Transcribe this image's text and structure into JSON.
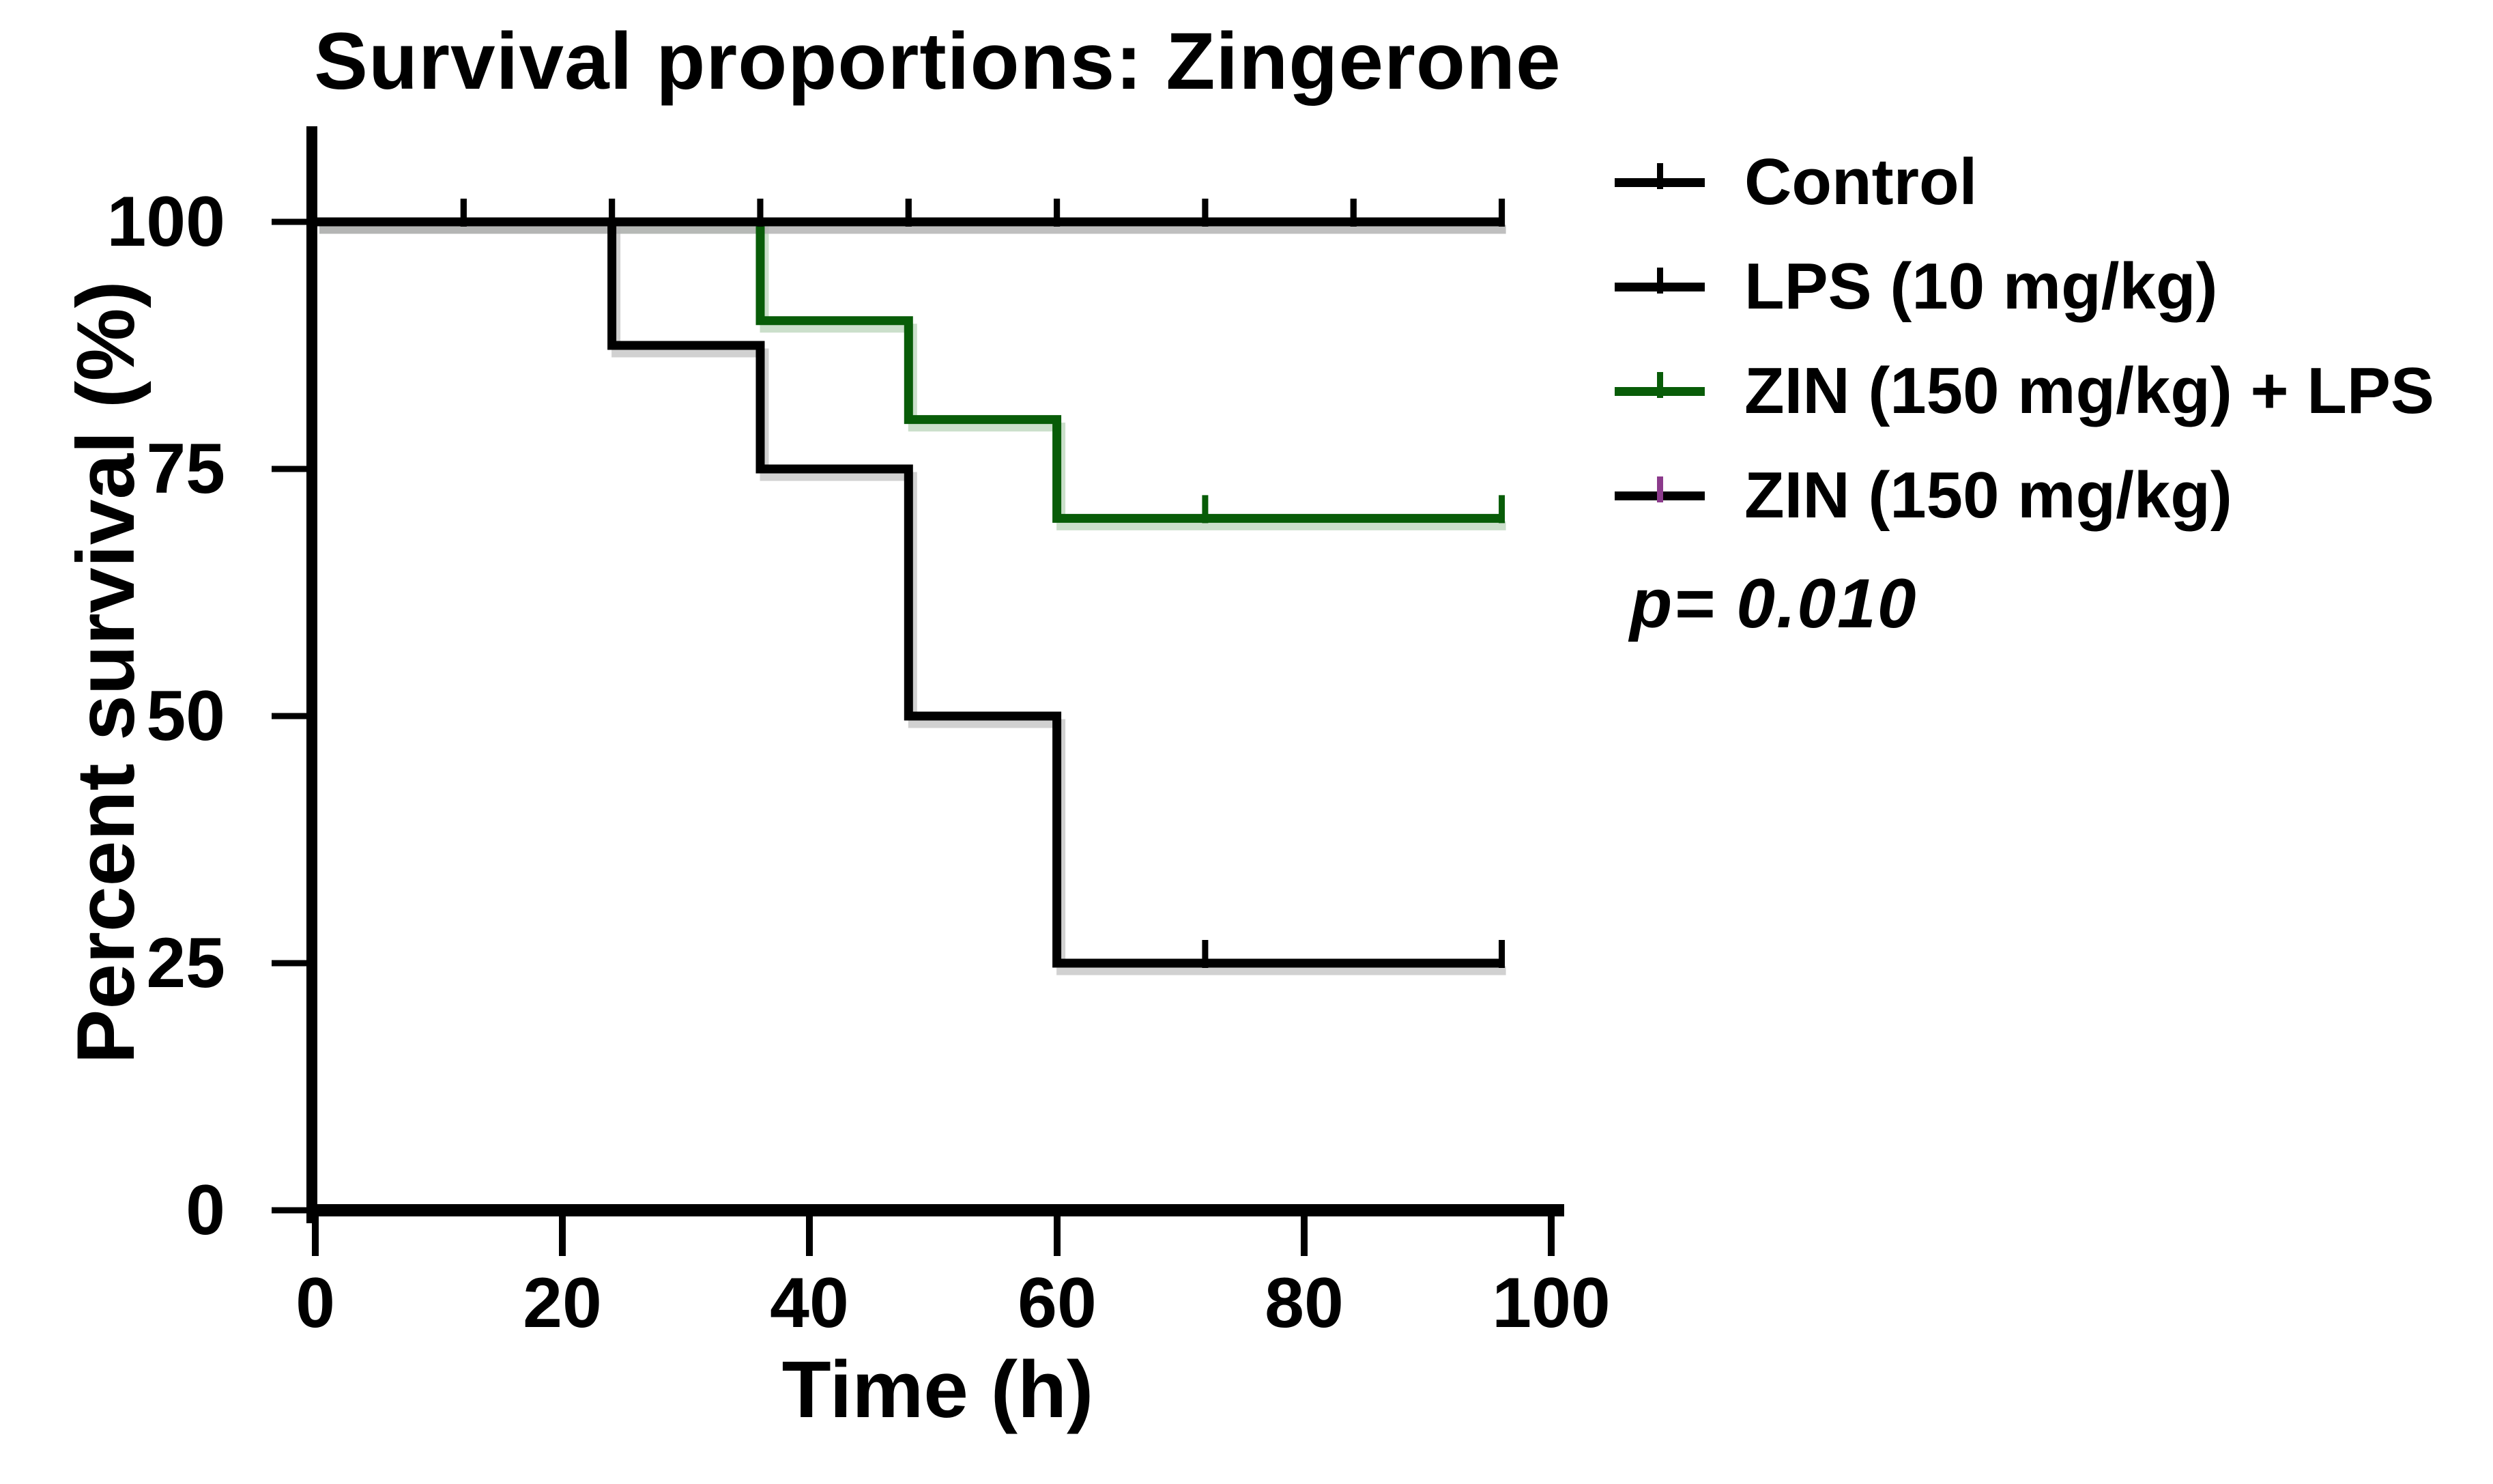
{
  "title": "Survival proportions: Zingerone",
  "y_axis": {
    "label": "Percent survival (%)",
    "tick_labels": [
      "100",
      "75",
      "50",
      "25",
      "0"
    ]
  },
  "x_axis": {
    "label": "Time (h)",
    "tick_labels": [
      "0",
      "20",
      "40",
      "60",
      "80",
      "100"
    ]
  },
  "legend": {
    "items": [
      {
        "label": "Control",
        "color": "#000000",
        "tick_color": "#000000"
      },
      {
        "label": "LPS (10 mg/kg)",
        "color": "#000000",
        "tick_color": "#000000"
      },
      {
        "label": "ZIN (150 mg/kg) + LPS",
        "color": "#085c08",
        "tick_color": "#085c08"
      },
      {
        "label": "ZIN (150 mg/kg)",
        "color": "#000000",
        "tick_color": "#8b3a8b"
      }
    ]
  },
  "p_value": "p= 0.010",
  "chart_data": {
    "type": "line",
    "subtype": "kaplan-meier-step",
    "title": "Survival proportions: Zingerone",
    "xlabel": "Time (h)",
    "ylabel": "Percent survival (%)",
    "xlim": [
      0,
      100
    ],
    "ylim": [
      0,
      100
    ],
    "x_ticks": [
      0,
      20,
      40,
      60,
      80,
      100
    ],
    "y_ticks": [
      0,
      25,
      50,
      75,
      100
    ],
    "grid": false,
    "legend_position": "right",
    "annotation": "p= 0.010",
    "series": [
      {
        "name": "Control",
        "color": "#000000",
        "points": [
          [
            0,
            100
          ],
          [
            96,
            100
          ]
        ],
        "censor_ticks": [
          12,
          24,
          36,
          48,
          60,
          72,
          84,
          96
        ]
      },
      {
        "name": "LPS (10 mg/kg)",
        "color": "#000000",
        "points": [
          [
            0,
            100
          ],
          [
            24,
            100
          ],
          [
            24,
            87.5
          ],
          [
            36,
            87.5
          ],
          [
            36,
            75
          ],
          [
            48,
            75
          ],
          [
            48,
            50
          ],
          [
            60,
            50
          ],
          [
            60,
            25
          ],
          [
            96,
            25
          ]
        ],
        "censor_ticks": [
          72,
          96
        ]
      },
      {
        "name": "ZIN (150 mg/kg) + LPS",
        "color": "#085c08",
        "points": [
          [
            0,
            100
          ],
          [
            36,
            100
          ],
          [
            36,
            90
          ],
          [
            48,
            90
          ],
          [
            48,
            80
          ],
          [
            60,
            80
          ],
          [
            60,
            70
          ],
          [
            96,
            70
          ]
        ],
        "censor_ticks": [
          72,
          96
        ]
      },
      {
        "name": "ZIN (150 mg/kg)",
        "color": "#000000",
        "points": [
          [
            0,
            100
          ],
          [
            96,
            100
          ]
        ],
        "censor_ticks": [
          12,
          24,
          36,
          48,
          60,
          72,
          84,
          96
        ]
      }
    ]
  }
}
